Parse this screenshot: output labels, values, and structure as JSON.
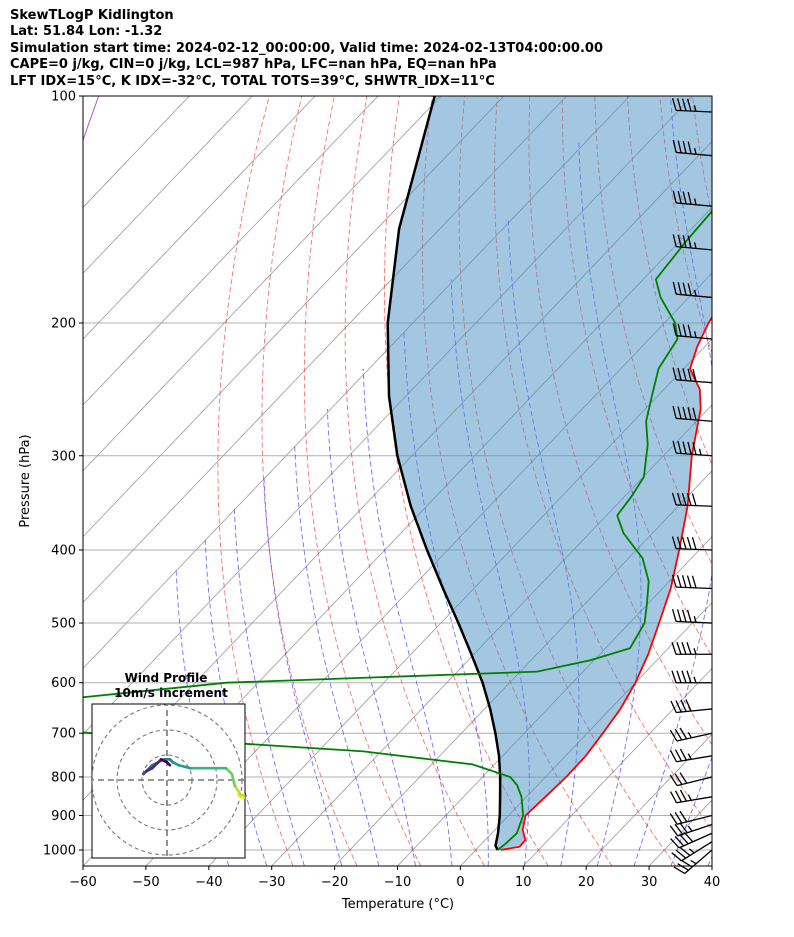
{
  "header": {
    "title": "SkewTLogP Kidlington",
    "location": "Lat: 51.84   Lon: -1.32",
    "times": "Simulation start time: 2024-02-12_00:00:00, Valid time: 2024-02-13T04:00:00.00",
    "params": "CAPE=0 j/kg, CIN=0 j/kg, LCL=987 hPa, LFC=nan hPa, EQ=nan hPa",
    "indices": "LFT IDX=15$^\\circ$C, K IDX=-32$^\\circ$C, TOTAL TOTS=39$^\\circ$C, SHWTR_IDX=11$^\\circ$C"
  },
  "chart_data": {
    "type": "skewt",
    "xlabel": "Temperature ($^\\circ$C)",
    "ylabel": "Pressure (hPa)",
    "xlim": [
      -60,
      40
    ],
    "ylim": [
      1050,
      100
    ],
    "x_ticks": [
      -60,
      -50,
      -40,
      -30,
      -20,
      -10,
      0,
      10,
      20,
      30,
      40
    ],
    "y_ticks": [
      100,
      200,
      300,
      400,
      500,
      600,
      700,
      800,
      900,
      1000
    ],
    "temperature": [
      {
        "p": 1000,
        "t": 4.0
      },
      {
        "p": 990,
        "t": 6.5
      },
      {
        "p": 970,
        "t": 6.4
      },
      {
        "p": 940,
        "t": 4.4
      },
      {
        "p": 900,
        "t": 2.7
      },
      {
        "p": 850,
        "t": 3.0
      },
      {
        "p": 800,
        "t": 3.3
      },
      {
        "p": 750,
        "t": 3.2
      },
      {
        "p": 700,
        "t": 2.5
      },
      {
        "p": 650,
        "t": 1.6
      },
      {
        "p": 600,
        "t": 0.0
      },
      {
        "p": 550,
        "t": -2.3
      },
      {
        "p": 500,
        "t": -5.3
      },
      {
        "p": 450,
        "t": -8.7
      },
      {
        "p": 400,
        "t": -13.2
      },
      {
        "p": 350,
        "t": -18.5
      },
      {
        "p": 300,
        "t": -25.5
      },
      {
        "p": 260,
        "t": -31.2
      },
      {
        "p": 245,
        "t": -34.3
      },
      {
        "p": 230,
        "t": -39.0
      },
      {
        "p": 215,
        "t": -41.2
      },
      {
        "p": 200,
        "t": -43.0
      },
      {
        "p": 180,
        "t": -44.8
      },
      {
        "p": 160,
        "t": -47.2
      },
      {
        "p": 140,
        "t": -49.6
      },
      {
        "p": 120,
        "t": -52.1
      },
      {
        "p": 110,
        "t": -53.5
      },
      {
        "p": 100,
        "t": -54.7
      }
    ],
    "dewpoint": [
      {
        "p": 1000,
        "t": 3.5
      },
      {
        "p": 980,
        "t": 3.8
      },
      {
        "p": 950,
        "t": 4.0
      },
      {
        "p": 900,
        "t": 2.3
      },
      {
        "p": 850,
        "t": -0.8
      },
      {
        "p": 820,
        "t": -3.3
      },
      {
        "p": 800,
        "t": -5.6
      },
      {
        "p": 770,
        "t": -13.5
      },
      {
        "p": 740,
        "t": -32.8
      },
      {
        "p": 720,
        "t": -56.5
      },
      {
        "p": 690,
        "t": -90.0
      },
      {
        "p": 640,
        "t": -95.0
      },
      {
        "p": 600,
        "t": -65.0
      },
      {
        "p": 580,
        "t": -17.3
      },
      {
        "p": 560,
        "t": -10.6
      },
      {
        "p": 540,
        "t": -6.1
      },
      {
        "p": 500,
        "t": -7.6
      },
      {
        "p": 470,
        "t": -10.3
      },
      {
        "p": 440,
        "t": -13.3
      },
      {
        "p": 410,
        "t": -17.8
      },
      {
        "p": 380,
        "t": -24.6
      },
      {
        "p": 360,
        "t": -28.3
      },
      {
        "p": 340,
        "t": -28.9
      },
      {
        "p": 320,
        "t": -29.9
      },
      {
        "p": 290,
        "t": -34.2
      },
      {
        "p": 270,
        "t": -38.0
      },
      {
        "p": 250,
        "t": -40.9
      },
      {
        "p": 230,
        "t": -44.0
      },
      {
        "p": 210,
        "t": -45.5
      },
      {
        "p": 200,
        "t": -48.3
      },
      {
        "p": 185,
        "t": -54.5
      },
      {
        "p": 175,
        "t": -58.0
      },
      {
        "p": 155,
        "t": -59.0
      },
      {
        "p": 140,
        "t": -59.5
      },
      {
        "p": 125,
        "t": -60.0
      },
      {
        "p": 110,
        "t": -61.5
      },
      {
        "p": 100,
        "t": -63.0
      }
    ],
    "parcel": [
      {
        "p": 1000,
        "t": 3.5
      },
      {
        "p": 987,
        "t": 2.5
      },
      {
        "p": 950,
        "t": 1.0
      },
      {
        "p": 900,
        "t": -1.4
      },
      {
        "p": 850,
        "t": -4.2
      },
      {
        "p": 800,
        "t": -7.2
      },
      {
        "p": 750,
        "t": -10.6
      },
      {
        "p": 700,
        "t": -14.6
      },
      {
        "p": 650,
        "t": -19.1
      },
      {
        "p": 600,
        "t": -24.3
      },
      {
        "p": 550,
        "t": -30.4
      },
      {
        "p": 500,
        "t": -37.2
      },
      {
        "p": 450,
        "t": -44.9
      },
      {
        "p": 400,
        "t": -53.3
      },
      {
        "p": 350,
        "t": -62.5
      },
      {
        "p": 300,
        "t": -72.3
      },
      {
        "p": 250,
        "t": -82.7
      },
      {
        "p": 200,
        "t": -94.0
      },
      {
        "p": 150,
        "t": -106.5
      },
      {
        "p": 100,
        "t": -121.0
      }
    ],
    "wind_barbs": [
      {
        "p": 1000,
        "u": 14,
        "v": 12
      },
      {
        "p": 975,
        "u": 16,
        "v": 10
      },
      {
        "p": 950,
        "u": 18,
        "v": 8
      },
      {
        "p": 925,
        "u": 18,
        "v": 6
      },
      {
        "p": 900,
        "u": 16,
        "v": 4
      },
      {
        "p": 850,
        "u": 18,
        "v": 3
      },
      {
        "p": 800,
        "u": 16,
        "v": 4
      },
      {
        "p": 750,
        "u": 18,
        "v": 3
      },
      {
        "p": 700,
        "u": 18,
        "v": 4
      },
      {
        "p": 650,
        "u": 20,
        "v": 2
      },
      {
        "p": 600,
        "u": 22,
        "v": 0
      },
      {
        "p": 550,
        "u": 22,
        "v": 0
      },
      {
        "p": 500,
        "u": 22,
        "v": -1
      },
      {
        "p": 450,
        "u": 25,
        "v": -1
      },
      {
        "p": 400,
        "u": 27,
        "v": -1
      },
      {
        "p": 350,
        "u": 27,
        "v": -1
      },
      {
        "p": 300,
        "u": 27,
        "v": -2
      },
      {
        "p": 270,
        "u": 25,
        "v": -2
      },
      {
        "p": 240,
        "u": 25,
        "v": -2
      },
      {
        "p": 210,
        "u": 22,
        "v": -2
      },
      {
        "p": 185,
        "u": 22,
        "v": -2
      },
      {
        "p": 160,
        "u": 22,
        "v": -2
      },
      {
        "p": 140,
        "u": 22,
        "v": -2
      },
      {
        "p": 120,
        "u": 22,
        "v": -2
      },
      {
        "p": 105,
        "u": 22,
        "v": -1
      }
    ],
    "hodograph": {
      "title": "Wind Profile",
      "subtitle": "10m/s increment",
      "ring_step_ms": 10,
      "rings": 3,
      "points": [
        [
          24,
          -5
        ],
        [
          26,
          -6
        ],
        [
          28,
          -4
        ],
        [
          30,
          -5
        ],
        [
          29,
          -6
        ],
        [
          25,
          -5
        ],
        [
          23,
          -2
        ],
        [
          22,
          2
        ],
        [
          20,
          4
        ],
        [
          16,
          4
        ],
        [
          12,
          4
        ],
        [
          8,
          4
        ],
        [
          4,
          5
        ],
        [
          2,
          6
        ],
        [
          1,
          7
        ],
        [
          -1,
          7
        ],
        [
          -3,
          6
        ],
        [
          -5,
          5
        ],
        [
          -6,
          4
        ],
        [
          -7,
          3
        ],
        [
          -8,
          2
        ],
        [
          -7,
          3
        ],
        [
          -5,
          4
        ],
        [
          -3,
          6
        ],
        [
          -2,
          7
        ],
        [
          0,
          6
        ],
        [
          1,
          5
        ]
      ]
    }
  }
}
